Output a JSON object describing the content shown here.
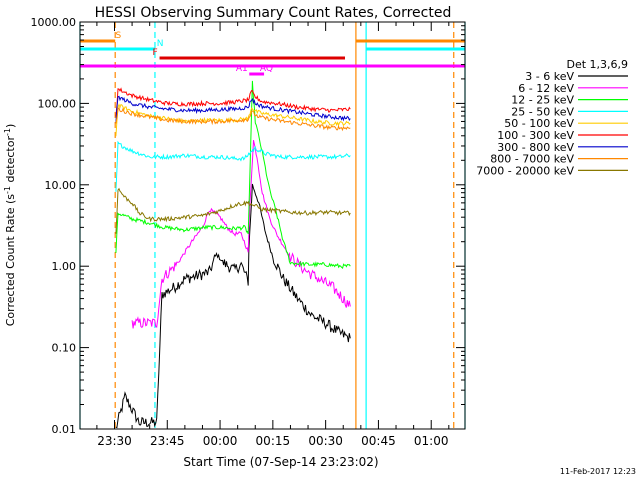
{
  "chart_data": {
    "type": "line",
    "title": "HESSI Observing Summary Count Rates, Corrected",
    "xlabel": "Start Time (07-Sep-14 23:23:02)",
    "ylabel_main": "Corrected Count Rate (s",
    "ylabel_sup": "-1",
    "ylabel_end": " detector",
    "ylabel_sup2": "-1",
    "ylabel_close": ")",
    "yscale": "log",
    "ylim": [
      0.01,
      1000
    ],
    "xlim_minutes": [
      -9.8,
      99.6
    ],
    "yticks": [
      {
        "v": 1000,
        "label": "1000.00"
      },
      {
        "v": 100,
        "label": "100.00"
      },
      {
        "v": 10,
        "label": "10.00"
      },
      {
        "v": 1,
        "label": "1.00"
      },
      {
        "v": 0.1,
        "label": "0.10"
      },
      {
        "v": 0.01,
        "label": "0.01"
      }
    ],
    "xticks": [
      {
        "t": 0,
        "label": "23:30"
      },
      {
        "t": 15,
        "label": "23:45"
      },
      {
        "t": 30,
        "label": "00:00"
      },
      {
        "t": 45,
        "label": "00:15"
      },
      {
        "t": 60,
        "label": "00:30"
      },
      {
        "t": 75,
        "label": "00:45"
      },
      {
        "t": 90,
        "label": "01:00"
      }
    ],
    "legend_title": "Det 1,3,6,9",
    "series": [
      {
        "name": "3 - 6 keV",
        "color": "#000000",
        "points": [
          [
            0.4,
            0.01
          ],
          [
            3,
            0.025
          ],
          [
            7,
            0.012
          ],
          [
            10,
            0.012
          ],
          [
            12,
            0.012
          ],
          [
            13.5,
            0.45
          ],
          [
            17,
            0.55
          ],
          [
            20,
            0.7
          ],
          [
            23,
            0.75
          ],
          [
            27,
            0.85
          ],
          [
            29,
            1.4
          ],
          [
            31,
            1.1
          ],
          [
            34,
            0.9
          ],
          [
            36,
            1.05
          ],
          [
            38,
            0.65
          ],
          [
            38.2,
            1.7
          ],
          [
            39.2,
            10
          ],
          [
            41,
            6
          ],
          [
            43,
            2.5
          ],
          [
            45,
            1.3
          ],
          [
            48,
            0.7
          ],
          [
            52,
            0.4
          ],
          [
            56,
            0.25
          ],
          [
            60,
            0.2
          ],
          [
            64,
            0.15
          ],
          [
            67,
            0.13
          ]
        ]
      },
      {
        "name": "6 - 12 keV",
        "color": "#ff00ff",
        "points": [
          [
            5,
            0.2
          ],
          [
            10,
            0.2
          ],
          [
            12,
            0.2
          ],
          [
            13.5,
            0.7
          ],
          [
            18,
            1.1
          ],
          [
            22,
            2
          ],
          [
            25,
            3
          ],
          [
            27,
            5
          ],
          [
            30,
            4
          ],
          [
            32,
            3
          ],
          [
            34,
            2.5
          ],
          [
            36,
            2.5
          ],
          [
            38,
            1.5
          ],
          [
            38.5,
            6
          ],
          [
            39.5,
            35
          ],
          [
            40.5,
            22
          ],
          [
            42,
            8
          ],
          [
            44,
            4
          ],
          [
            46,
            2.5
          ],
          [
            50,
            1.3
          ],
          [
            54,
            0.9
          ],
          [
            58,
            0.7
          ],
          [
            62,
            0.55
          ],
          [
            65,
            0.4
          ],
          [
            67,
            0.32
          ]
        ]
      },
      {
        "name": "12 - 25 keV",
        "color": "#00ff00",
        "points": [
          [
            0.4,
            1.5
          ],
          [
            1,
            4.5
          ],
          [
            5,
            3.8
          ],
          [
            10,
            3.4
          ],
          [
            14,
            3
          ],
          [
            20,
            2.8
          ],
          [
            26,
            3
          ],
          [
            30,
            3
          ],
          [
            34,
            2.9
          ],
          [
            37,
            3
          ],
          [
            38,
            2.5
          ],
          [
            38.5,
            14
          ],
          [
            39.2,
            180
          ],
          [
            40,
            60
          ],
          [
            42,
            25
          ],
          [
            44,
            9
          ],
          [
            46,
            4.5
          ],
          [
            48,
            2
          ],
          [
            50,
            1.1
          ],
          [
            55,
            1.05
          ],
          [
            60,
            1.05
          ],
          [
            64,
            1.0
          ],
          [
            67,
            1.0
          ]
        ]
      },
      {
        "name": "25 - 50 keV",
        "color": "#00ffff",
        "points": [
          [
            0.4,
            8
          ],
          [
            1,
            32
          ],
          [
            5,
            26
          ],
          [
            10,
            22
          ],
          [
            15,
            22
          ],
          [
            20,
            23
          ],
          [
            26,
            22
          ],
          [
            30,
            22
          ],
          [
            34,
            21
          ],
          [
            37,
            21
          ],
          [
            39,
            26
          ],
          [
            40,
            28
          ],
          [
            43,
            24
          ],
          [
            47,
            22
          ],
          [
            52,
            22
          ],
          [
            58,
            22
          ],
          [
            64,
            22
          ],
          [
            67,
            23
          ]
        ]
      },
      {
        "name": "50 - 100 keV",
        "color": "#ffcc00",
        "points": [
          [
            0.4,
            40
          ],
          [
            1,
            95
          ],
          [
            5,
            80
          ],
          [
            10,
            70
          ],
          [
            15,
            65
          ],
          [
            20,
            60
          ],
          [
            25,
            62
          ],
          [
            30,
            62
          ],
          [
            35,
            63
          ],
          [
            38,
            65
          ],
          [
            39,
            90
          ],
          [
            40,
            80
          ],
          [
            42,
            75
          ],
          [
            47,
            70
          ],
          [
            52,
            65
          ],
          [
            57,
            60
          ],
          [
            62,
            57
          ],
          [
            67,
            57
          ]
        ]
      },
      {
        "name": "100 - 300 keV",
        "color": "#ff0000",
        "points": [
          [
            0.4,
            70
          ],
          [
            1,
            150
          ],
          [
            5,
            125
          ],
          [
            10,
            110
          ],
          [
            15,
            100
          ],
          [
            20,
            98
          ],
          [
            25,
            100
          ],
          [
            30,
            100
          ],
          [
            35,
            105
          ],
          [
            38,
            110
          ],
          [
            39,
            140
          ],
          [
            40,
            120
          ],
          [
            42,
            105
          ],
          [
            46,
            100
          ],
          [
            52,
            90
          ],
          [
            57,
            85
          ],
          [
            62,
            82
          ],
          [
            67,
            85
          ]
        ]
      },
      {
        "name": "300 - 800 keV",
        "color": "#0000cc",
        "points": [
          [
            0.4,
            60
          ],
          [
            1,
            120
          ],
          [
            5,
            100
          ],
          [
            10,
            90
          ],
          [
            15,
            85
          ],
          [
            20,
            82
          ],
          [
            25,
            82
          ],
          [
            30,
            84
          ],
          [
            35,
            86
          ],
          [
            38,
            90
          ],
          [
            39,
            115
          ],
          [
            40,
            100
          ],
          [
            42,
            92
          ],
          [
            46,
            85
          ],
          [
            52,
            78
          ],
          [
            57,
            72
          ],
          [
            62,
            68
          ],
          [
            67,
            65
          ]
        ]
      },
      {
        "name": "800 - 7000 keV",
        "color": "#ff8800",
        "points": [
          [
            0.4,
            55
          ],
          [
            1,
            85
          ],
          [
            5,
            75
          ],
          [
            10,
            68
          ],
          [
            15,
            62
          ],
          [
            20,
            60
          ],
          [
            25,
            60
          ],
          [
            30,
            60
          ],
          [
            35,
            62
          ],
          [
            38,
            64
          ],
          [
            39,
            78
          ],
          [
            41,
            68
          ],
          [
            46,
            62
          ],
          [
            52,
            57
          ],
          [
            57,
            53
          ],
          [
            62,
            50
          ],
          [
            67,
            50
          ]
        ]
      },
      {
        "name": "7000 - 20000 keV",
        "color": "#887700",
        "points": [
          [
            0.4,
            2.5
          ],
          [
            1,
            9
          ],
          [
            3,
            7
          ],
          [
            5,
            6
          ],
          [
            7,
            4.5
          ],
          [
            10,
            3.8
          ],
          [
            15,
            3.8
          ],
          [
            20,
            4
          ],
          [
            25,
            4.2
          ],
          [
            30,
            4.8
          ],
          [
            35,
            5.8
          ],
          [
            38,
            6
          ],
          [
            40,
            5.5
          ],
          [
            42,
            5
          ],
          [
            46,
            4.8
          ],
          [
            50,
            4.6
          ],
          [
            55,
            4.5
          ],
          [
            60,
            4.6
          ],
          [
            64,
            4.5
          ],
          [
            67,
            4.5
          ]
        ]
      }
    ],
    "flag_bars": [
      {
        "label": "S",
        "color": "#ff8800",
        "t_start": -9.8,
        "t_end": 0.2,
        "y_step": 0,
        "label_t": 0.3
      },
      {
        "label": "S",
        "color": "#ff8800",
        "t_start": 68.6,
        "t_end": 99.6,
        "y_step": 0,
        "label_t": null
      },
      {
        "label": "N",
        "color": "#00ffff",
        "t_start": -9.8,
        "t_end": 11.5,
        "y_step": 1,
        "label_t": 12.0
      },
      {
        "label": "N",
        "color": "#00ffff",
        "t_start": 71.5,
        "t_end": 99.6,
        "y_step": 1,
        "label_t": null
      },
      {
        "label": "F",
        "color": "#dd0000",
        "t_start": 12.8,
        "t_end": 65.5,
        "y_step": 2,
        "label_t": 10.8
      },
      {
        "label": "",
        "color": "#ff00ff",
        "t_start": -9.8,
        "t_end": 99.6,
        "y_step": 3,
        "label_t": null
      },
      {
        "label": "A1",
        "color": "#ff00ff",
        "t_start": 38.3,
        "t_end": 42.5,
        "y_step": 4,
        "label_t": 34.5
      },
      {
        "label": "AQ",
        "color": "#ff00ff",
        "t_start": 42.5,
        "t_end": 42.5,
        "y_step": 4,
        "label_t": 41.3
      }
    ],
    "vlines": [
      {
        "t": -9.8,
        "color": "#00ffff",
        "dash": false
      },
      {
        "t": 0.2,
        "color": "#ff8800",
        "dash": true
      },
      {
        "t": 11.5,
        "color": "#00ffff",
        "dash": true
      },
      {
        "t": 68.6,
        "color": "#ff8800",
        "dash": false
      },
      {
        "t": 71.5,
        "color": "#00ffff",
        "dash": false
      },
      {
        "t": 96.4,
        "color": "#ff8800",
        "dash": true
      },
      {
        "t": 99.6,
        "color": "#00ffff",
        "dash": false
      }
    ],
    "footer": "11-Feb-2017 12:23"
  }
}
